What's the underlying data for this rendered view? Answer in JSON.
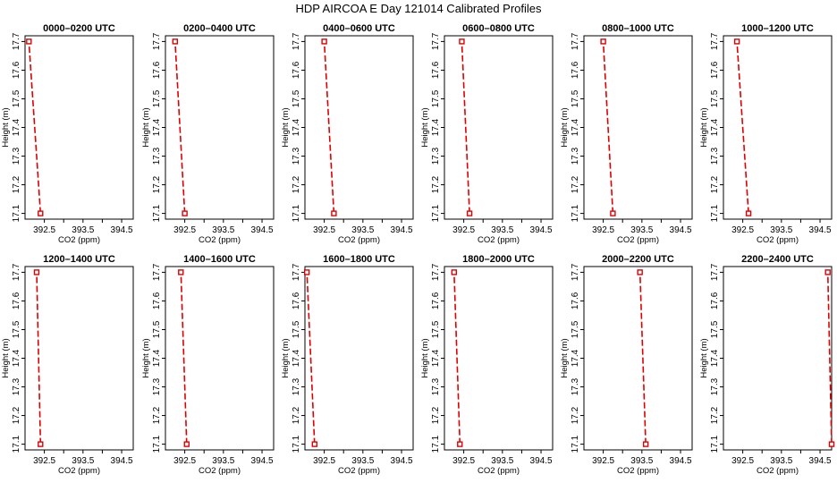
{
  "figure": {
    "title": "HDP AIRCOA E  Day 121014  Calibrated Profiles"
  },
  "chart_data": [
    {
      "type": "line",
      "title": "0000–0200 UTC",
      "xlabel": "CO2 (ppm)",
      "ylabel": "Height (m)",
      "xlim": [
        392.0,
        394.8
      ],
      "ylim": [
        17.08,
        17.72
      ],
      "xticks": [
        "392.5",
        "393.5",
        "394.5"
      ],
      "yticks": [
        "17.1",
        "17.2",
        "17.3",
        "17.4",
        "17.5",
        "17.6",
        "17.7"
      ],
      "series": [
        {
          "x": [
            392.4,
            392.1
          ],
          "y": [
            17.1,
            17.7
          ]
        }
      ]
    },
    {
      "type": "line",
      "title": "0200–0400 UTC",
      "xlabel": "CO2 (ppm)",
      "ylabel": "Height (m)",
      "xlim": [
        392.0,
        394.8
      ],
      "ylim": [
        17.08,
        17.72
      ],
      "xticks": [
        "392.5",
        "393.5",
        "394.5"
      ],
      "yticks": [
        "17.1",
        "17.2",
        "17.3",
        "17.4",
        "17.5",
        "17.6",
        "17.7"
      ],
      "series": [
        {
          "x": [
            392.5,
            392.25
          ],
          "y": [
            17.1,
            17.7
          ]
        }
      ]
    },
    {
      "type": "line",
      "title": "0400–0600 UTC",
      "xlabel": "CO2 (ppm)",
      "ylabel": "Height (m)",
      "xlim": [
        392.0,
        394.8
      ],
      "ylim": [
        17.08,
        17.72
      ],
      "xticks": [
        "392.5",
        "393.5",
        "394.5"
      ],
      "yticks": [
        "17.1",
        "17.2",
        "17.3",
        "17.4",
        "17.5",
        "17.6",
        "17.7"
      ],
      "series": [
        {
          "x": [
            392.75,
            392.5
          ],
          "y": [
            17.1,
            17.7
          ]
        }
      ]
    },
    {
      "type": "line",
      "title": "0600–0800 UTC",
      "xlabel": "CO2 (ppm)",
      "ylabel": "Height (m)",
      "xlim": [
        392.0,
        394.8
      ],
      "ylim": [
        17.08,
        17.72
      ],
      "xticks": [
        "392.5",
        "393.5",
        "394.5"
      ],
      "yticks": [
        "17.1",
        "17.2",
        "17.3",
        "17.4",
        "17.5",
        "17.6",
        "17.7"
      ],
      "series": [
        {
          "x": [
            392.65,
            392.45
          ],
          "y": [
            17.1,
            17.7
          ]
        }
      ]
    },
    {
      "type": "line",
      "title": "0800–1000 UTC",
      "xlabel": "CO2 (ppm)",
      "ylabel": "Height (m)",
      "xlim": [
        392.0,
        394.8
      ],
      "ylim": [
        17.08,
        17.72
      ],
      "xticks": [
        "392.5",
        "393.5",
        "394.5"
      ],
      "yticks": [
        "17.1",
        "17.2",
        "17.3",
        "17.4",
        "17.5",
        "17.6",
        "17.7"
      ],
      "series": [
        {
          "x": [
            392.75,
            392.5
          ],
          "y": [
            17.1,
            17.7
          ]
        }
      ]
    },
    {
      "type": "line",
      "title": "1000–1200 UTC",
      "xlabel": "CO2 (ppm)",
      "ylabel": "Height (m)",
      "xlim": [
        392.0,
        394.8
      ],
      "ylim": [
        17.08,
        17.72
      ],
      "xticks": [
        "392.5",
        "393.5",
        "394.5"
      ],
      "yticks": [
        "17.1",
        "17.2",
        "17.3",
        "17.4",
        "17.5",
        "17.6",
        "17.7"
      ],
      "series": [
        {
          "x": [
            392.65,
            392.35
          ],
          "y": [
            17.1,
            17.7
          ]
        }
      ]
    },
    {
      "type": "line",
      "title": "1200–1400 UTC",
      "xlabel": "CO2 (ppm)",
      "ylabel": "Height (m)",
      "xlim": [
        392.0,
        394.8
      ],
      "ylim": [
        17.08,
        17.72
      ],
      "xticks": [
        "392.5",
        "393.5",
        "394.5"
      ],
      "yticks": [
        "17.1",
        "17.2",
        "17.3",
        "17.4",
        "17.5",
        "17.6",
        "17.7"
      ],
      "series": [
        {
          "x": [
            392.4,
            392.3
          ],
          "y": [
            17.1,
            17.7
          ]
        }
      ]
    },
    {
      "type": "line",
      "title": "1400–1600 UTC",
      "xlabel": "CO2 (ppm)",
      "ylabel": "Height (m)",
      "xlim": [
        392.0,
        394.8
      ],
      "ylim": [
        17.08,
        17.72
      ],
      "xticks": [
        "392.5",
        "393.5",
        "394.5"
      ],
      "yticks": [
        "17.1",
        "17.2",
        "17.3",
        "17.4",
        "17.5",
        "17.6",
        "17.7"
      ],
      "series": [
        {
          "x": [
            392.55,
            392.4
          ],
          "y": [
            17.1,
            17.7
          ]
        }
      ]
    },
    {
      "type": "line",
      "title": "1600–1800 UTC",
      "xlabel": "CO2 (ppm)",
      "ylabel": "Height (m)",
      "xlim": [
        392.0,
        394.8
      ],
      "ylim": [
        17.08,
        17.72
      ],
      "xticks": [
        "392.5",
        "393.5",
        "394.5"
      ],
      "yticks": [
        "17.1",
        "17.2",
        "17.3",
        "17.4",
        "17.5",
        "17.6",
        "17.7"
      ],
      "series": [
        {
          "x": [
            392.25,
            392.05
          ],
          "y": [
            17.1,
            17.7
          ]
        }
      ]
    },
    {
      "type": "line",
      "title": "1800–2000 UTC",
      "xlabel": "CO2 (ppm)",
      "ylabel": "Height (m)",
      "xlim": [
        392.0,
        394.8
      ],
      "ylim": [
        17.08,
        17.72
      ],
      "xticks": [
        "392.5",
        "393.5",
        "394.5"
      ],
      "yticks": [
        "17.1",
        "17.2",
        "17.3",
        "17.4",
        "17.5",
        "17.6",
        "17.7"
      ],
      "series": [
        {
          "x": [
            392.4,
            392.25
          ],
          "y": [
            17.1,
            17.7
          ]
        }
      ]
    },
    {
      "type": "line",
      "title": "2000–2200 UTC",
      "xlabel": "CO2 (ppm)",
      "ylabel": "Height (m)",
      "xlim": [
        392.0,
        394.8
      ],
      "ylim": [
        17.08,
        17.72
      ],
      "xticks": [
        "392.5",
        "393.5",
        "394.5"
      ],
      "yticks": [
        "17.1",
        "17.2",
        "17.3",
        "17.4",
        "17.5",
        "17.6",
        "17.7"
      ],
      "series": [
        {
          "x": [
            393.6,
            393.45
          ],
          "y": [
            17.1,
            17.7
          ]
        }
      ]
    },
    {
      "type": "line",
      "title": "2200–2400 UTC",
      "xlabel": "CO2 (ppm)",
      "ylabel": "Height (m)",
      "xlim": [
        392.0,
        394.8
      ],
      "ylim": [
        17.08,
        17.72
      ],
      "xticks": [
        "392.5",
        "393.5",
        "394.5"
      ],
      "yticks": [
        "17.1",
        "17.2",
        "17.3",
        "17.4",
        "17.5",
        "17.6",
        "17.7"
      ],
      "series": [
        {
          "x": [
            394.8,
            394.7
          ],
          "y": [
            17.1,
            17.7
          ]
        }
      ]
    }
  ],
  "colors": {
    "line": "#e00000",
    "marker": "#e00000",
    "axes": "#000000"
  }
}
